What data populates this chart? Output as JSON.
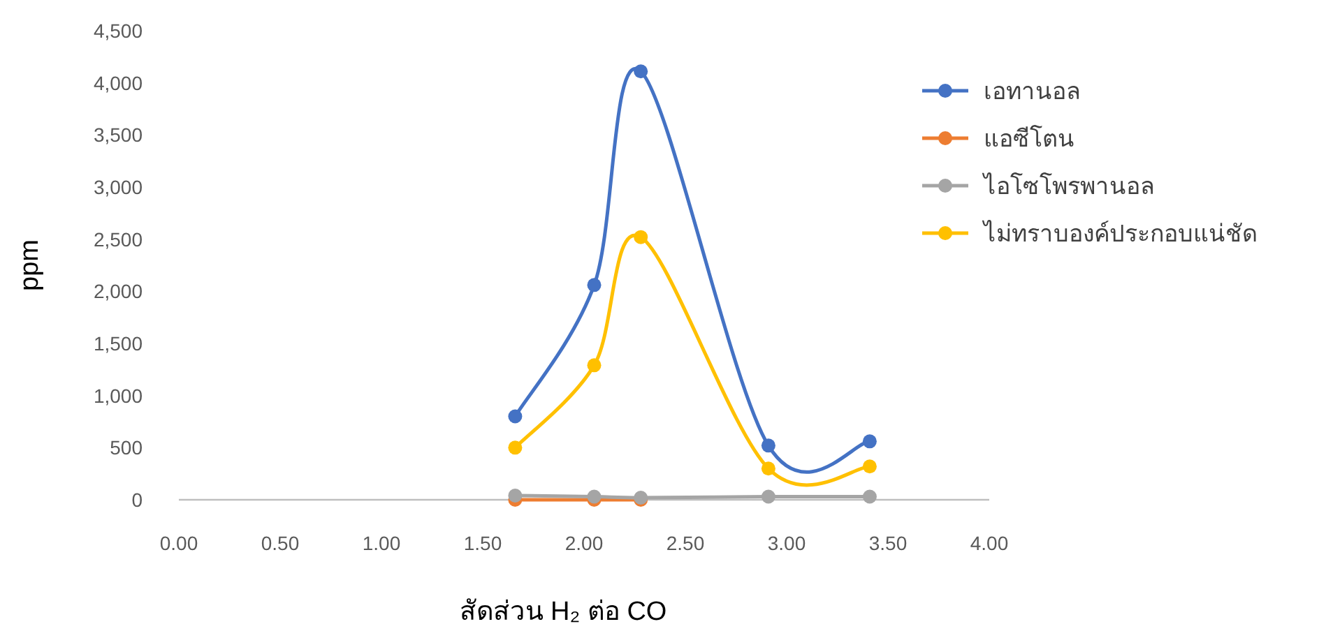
{
  "chart_data": {
    "type": "line",
    "xlabel": "สัดส่วน H₂ ต่อ CO",
    "ylabel": "ppm",
    "xlim": [
      0,
      4
    ],
    "xticks": [
      {
        "value": 0,
        "label": "0.00"
      },
      {
        "value": 0.5,
        "label": "0.50"
      },
      {
        "value": 1,
        "label": "1.00"
      },
      {
        "value": 1.5,
        "label": "1.50"
      },
      {
        "value": 2,
        "label": "2.00"
      },
      {
        "value": 2.5,
        "label": "2.50"
      },
      {
        "value": 3,
        "label": "3.00"
      },
      {
        "value": 3.5,
        "label": "3.50"
      },
      {
        "value": 4,
        "label": "4.00"
      }
    ],
    "ylim": [
      0,
      4500
    ],
    "yticks": [
      0,
      500,
      {
        "value": 1000,
        "label": "1,000"
      },
      {
        "value": 1500,
        "label": "1,500"
      },
      {
        "value": 2000,
        "label": "2,000"
      },
      {
        "value": 2500,
        "label": "2,500"
      },
      {
        "value": 3000,
        "label": "3,000"
      },
      {
        "value": 3500,
        "label": "3,500"
      },
      {
        "value": 4000,
        "label": "4,000"
      },
      {
        "value": 4500,
        "label": "4,500"
      }
    ],
    "x": [
      1.66,
      2.05,
      2.28,
      2.91,
      3.41
    ],
    "series": [
      {
        "name": "เอทานอล",
        "color": "#4472c4",
        "values": [
          800,
          2060,
          4110,
          520,
          560
        ]
      },
      {
        "name": "แอซีโตน",
        "color": "#ed7d31",
        "values": [
          0,
          0,
          0,
          null,
          null
        ]
      },
      {
        "name": "ไอโซโพรพานอล",
        "color": "#a5a5a5",
        "values": [
          40,
          30,
          20,
          30,
          30
        ]
      },
      {
        "name": "ไม่ทราบองค์ประกอบแน่ชัด",
        "color": "#ffc000",
        "values": [
          500,
          1290,
          2520,
          300,
          320
        ]
      }
    ],
    "marker": "circle",
    "line_style": "solid",
    "grid": false,
    "legend": "right"
  }
}
